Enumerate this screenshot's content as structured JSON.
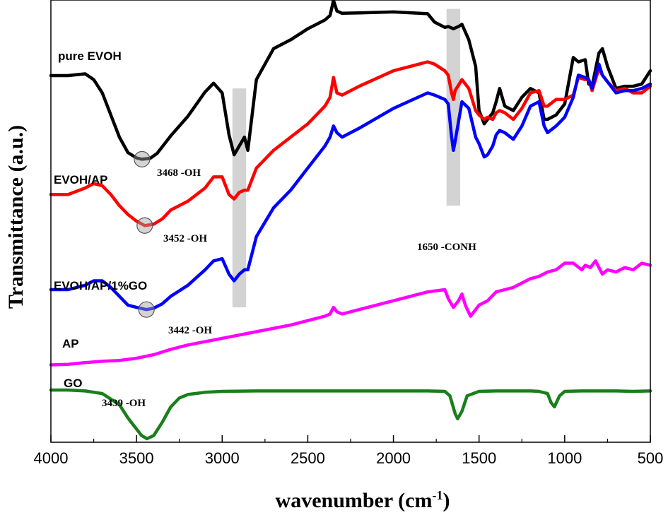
{
  "chart_data": {
    "type": "line",
    "xlabel": "wavenumber (cm",
    "xlabel_sup": "-1",
    "xlabel_close": ")",
    "ylabel": "Transmittance (a.u.)",
    "xlim": [
      4000,
      500
    ],
    "x_reversed": true,
    "ylim": [
      0,
      100
    ],
    "xticks": [
      4000,
      3500,
      3000,
      2500,
      2000,
      1500,
      1000,
      500
    ],
    "grid": false,
    "series": [
      {
        "name": "pure EVOH",
        "color": "#000000",
        "x": [
          4000,
          3900,
          3800,
          3750,
          3700,
          3650,
          3600,
          3550,
          3500,
          3468,
          3420,
          3380,
          3300,
          3200,
          3100,
          3050,
          3000,
          2960,
          2930,
          2900,
          2870,
          2850,
          2800,
          2700,
          2600,
          2500,
          2400,
          2370,
          2350,
          2330,
          2300,
          2200,
          2000,
          1800,
          1760,
          1700,
          1680,
          1650,
          1620,
          1600,
          1560,
          1520,
          1500,
          1470,
          1450,
          1420,
          1400,
          1380,
          1350,
          1300,
          1250,
          1200,
          1150,
          1120,
          1100,
          1050,
          1000,
          950,
          920,
          880,
          860,
          840,
          800,
          780,
          750,
          700,
          650,
          600,
          550,
          500
        ],
        "y": [
          82.9,
          82.9,
          83.3,
          82.0,
          79.0,
          74.0,
          69.0,
          65.5,
          64.3,
          64.0,
          64.2,
          65.3,
          69.3,
          73.7,
          79.2,
          81.2,
          79.0,
          69.5,
          65.0,
          67.0,
          69.0,
          66.0,
          82.0,
          89.0,
          91.0,
          93.5,
          95.5,
          96.5,
          99.9,
          97.5,
          97.0,
          97.1,
          97.3,
          96.9,
          95.0,
          93.8,
          94.0,
          93.5,
          94.0,
          94.5,
          91.0,
          85.0,
          75.0,
          72.0,
          73.0,
          74.5,
          77.0,
          80.0,
          76.0,
          75.0,
          78.0,
          80.0,
          79.0,
          73.0,
          73.0,
          74.0,
          76.5,
          87.0,
          86.0,
          86.5,
          81.0,
          80.5,
          88.0,
          89.0,
          85.0,
          80.0,
          80.5,
          80.5,
          81.0,
          84.0
        ]
      },
      {
        "name": "EVOH/AP",
        "color": "#ff0000",
        "x": [
          4000,
          3900,
          3800,
          3750,
          3700,
          3650,
          3600,
          3550,
          3500,
          3452,
          3400,
          3350,
          3300,
          3200,
          3100,
          3050,
          3000,
          2960,
          2930,
          2900,
          2870,
          2850,
          2800,
          2700,
          2600,
          2500,
          2400,
          2370,
          2350,
          2330,
          2300,
          2200,
          2000,
          1800,
          1760,
          1700,
          1680,
          1660,
          1650,
          1640,
          1600,
          1560,
          1520,
          1500,
          1470,
          1450,
          1420,
          1400,
          1380,
          1350,
          1300,
          1250,
          1200,
          1150,
          1120,
          1100,
          1050,
          1000,
          950,
          920,
          880,
          860,
          840,
          800,
          780,
          750,
          700,
          650,
          600,
          550,
          500
        ],
        "y": [
          56.0,
          56.0,
          57.5,
          58.5,
          58.0,
          56.0,
          53.5,
          51.5,
          50.0,
          49.0,
          49.3,
          50.5,
          52.5,
          54.5,
          57.5,
          60.0,
          60.0,
          56.0,
          55.0,
          56.5,
          57.0,
          57.0,
          62.0,
          66.0,
          69.0,
          72.0,
          76.0,
          78.0,
          82.5,
          79.0,
          78.5,
          80.5,
          84.0,
          86.0,
          85.5,
          84.0,
          83.0,
          79.0,
          77.5,
          79.5,
          82.0,
          80.0,
          75.0,
          74.0,
          73.0,
          73.5,
          73.0,
          74.5,
          75.0,
          74.5,
          73.0,
          75.5,
          79.0,
          79.5,
          76.0,
          76.0,
          77.5,
          77.5,
          78.5,
          82.5,
          82.0,
          82.0,
          79.5,
          84.5,
          83.0,
          81.5,
          79.5,
          80.0,
          79.0,
          79.0,
          80.5
        ]
      },
      {
        "name": "EVOH/AP/1%GO",
        "color": "#0000ff",
        "x": [
          4000,
          3900,
          3800,
          3750,
          3700,
          3650,
          3600,
          3550,
          3500,
          3442,
          3400,
          3350,
          3300,
          3200,
          3100,
          3050,
          3000,
          2960,
          2930,
          2900,
          2870,
          2850,
          2800,
          2700,
          2600,
          2500,
          2400,
          2370,
          2350,
          2330,
          2300,
          2200,
          2000,
          1800,
          1760,
          1700,
          1680,
          1660,
          1650,
          1640,
          1600,
          1560,
          1520,
          1500,
          1470,
          1450,
          1420,
          1400,
          1380,
          1350,
          1300,
          1250,
          1200,
          1150,
          1120,
          1100,
          1050,
          1000,
          950,
          920,
          880,
          860,
          840,
          800,
          780,
          750,
          700,
          650,
          600,
          550,
          500
        ],
        "y": [
          34.5,
          34.5,
          35.5,
          36.5,
          36.5,
          35.0,
          33.0,
          31.0,
          30.5,
          30.0,
          30.3,
          31.3,
          33.0,
          35.5,
          39.0,
          41.0,
          41.5,
          38.0,
          36.5,
          38.0,
          39.0,
          39.0,
          46.5,
          53.0,
          57.0,
          62.0,
          67.0,
          69.0,
          71.5,
          70.0,
          69.0,
          71.0,
          75.5,
          79.0,
          78.5,
          77.5,
          76.5,
          69.0,
          66.0,
          68.0,
          77.0,
          75.5,
          69.0,
          67.5,
          64.5,
          65.0,
          67.0,
          69.5,
          70.5,
          70.0,
          68.5,
          71.5,
          76.0,
          77.0,
          71.5,
          70.0,
          71.5,
          73.5,
          78.0,
          83.0,
          82.5,
          82.0,
          80.0,
          85.5,
          83.0,
          81.5,
          79.0,
          79.5,
          79.5,
          80.0,
          81.0
        ]
      },
      {
        "name": "AP",
        "color": "#ff00ff",
        "x": [
          4000,
          3900,
          3800,
          3700,
          3600,
          3500,
          3400,
          3300,
          3200,
          3000,
          2800,
          2600,
          2400,
          2370,
          2350,
          2330,
          2300,
          2200,
          2000,
          1800,
          1700,
          1680,
          1650,
          1620,
          1600,
          1580,
          1550,
          1520,
          1500,
          1450,
          1400,
          1350,
          1300,
          1250,
          1200,
          1150,
          1100,
          1050,
          1000,
          950,
          900,
          880,
          850,
          820,
          800,
          780,
          750,
          700,
          650,
          600,
          550,
          500
        ],
        "y": [
          17.5,
          17.6,
          18.0,
          18.3,
          18.5,
          19.0,
          19.8,
          21.0,
          22.0,
          23.5,
          25.0,
          26.5,
          28.5,
          29.0,
          30.5,
          29.5,
          29.0,
          30.0,
          32.0,
          34.0,
          34.5,
          32.5,
          30.5,
          32.0,
          33.5,
          31.0,
          28.5,
          30.0,
          31.0,
          32.0,
          34.0,
          34.5,
          35.0,
          36.0,
          37.0,
          37.5,
          38.5,
          39.0,
          40.5,
          40.5,
          39.0,
          40.0,
          39.5,
          41.0,
          39.5,
          38.0,
          39.0,
          38.5,
          39.5,
          39.0,
          40.5,
          40.0
        ]
      },
      {
        "name": "GO",
        "color": "#1a7f1a",
        "x": [
          4000,
          3900,
          3800,
          3700,
          3600,
          3550,
          3500,
          3470,
          3439,
          3400,
          3350,
          3300,
          3250,
          3200,
          3100,
          3000,
          2800,
          2500,
          2200,
          2000,
          1800,
          1700,
          1670,
          1640,
          1625,
          1600,
          1570,
          1500,
          1400,
          1300,
          1200,
          1150,
          1100,
          1080,
          1060,
          1030,
          1000,
          900,
          800,
          700,
          600,
          500
        ],
        "y": [
          11.8,
          11.8,
          11.6,
          11.0,
          8.5,
          5.5,
          3.0,
          1.5,
          0.8,
          1.5,
          4.5,
          8.0,
          10.0,
          10.8,
          11.3,
          11.5,
          11.6,
          11.6,
          11.6,
          11.6,
          11.6,
          11.5,
          10.5,
          6.5,
          5.3,
          7.0,
          10.5,
          11.5,
          11.6,
          11.6,
          11.6,
          11.5,
          11.0,
          9.0,
          8.0,
          10.5,
          11.5,
          11.6,
          11.6,
          11.6,
          11.5,
          11.6
        ]
      }
    ],
    "series_labels": [
      "pure EVOH",
      "EVOH/AP",
      "EVOH/AP/1%GO",
      "AP",
      "GO"
    ],
    "annotations": [
      {
        "text": "3468 -OH",
        "x": 3468,
        "y": 64.0
      },
      {
        "text": "3452 -OH",
        "x": 3452,
        "y": 49.0
      },
      {
        "text": "3442 -OH",
        "x": 3442,
        "y": 30.0
      },
      {
        "text": "3439 -OH",
        "x": 3439,
        "y": 0.8
      },
      {
        "text": "1650 -CONH",
        "x": 1650,
        "y": 75.0
      }
    ],
    "shaded_bands": [
      {
        "x_from": 2940,
        "x_to": 2860,
        "y_from": 30.5,
        "y_to": 80.0
      },
      {
        "x_from": 1690,
        "x_to": 1610,
        "y_from": 53.5,
        "y_to": 98.0
      }
    ]
  }
}
